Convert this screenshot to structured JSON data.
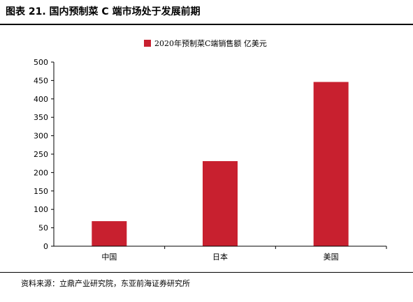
{
  "figure": {
    "title": "图表 21. 国内预制菜 C 端市场处于发展前期",
    "source": "资料来源：立鼎产业研究院，东亚前海证券研究所"
  },
  "colors": {
    "bar": "#c8202f",
    "axis": "#000000",
    "rule": "#000000"
  },
  "chart_data": {
    "type": "bar",
    "categories": [
      "中国",
      "日本",
      "美国"
    ],
    "series": [
      {
        "name": "2020年预制菜C端销售额 亿美元",
        "values": [
          68,
          231,
          446
        ]
      }
    ],
    "xlabel": "",
    "ylabel": "",
    "ylim": [
      0,
      500
    ],
    "yticks": [
      "0",
      "50",
      "100",
      "150",
      "200",
      "250",
      "300",
      "350",
      "400",
      "450",
      "500"
    ],
    "grid": false,
    "legend_position": "top-center"
  }
}
